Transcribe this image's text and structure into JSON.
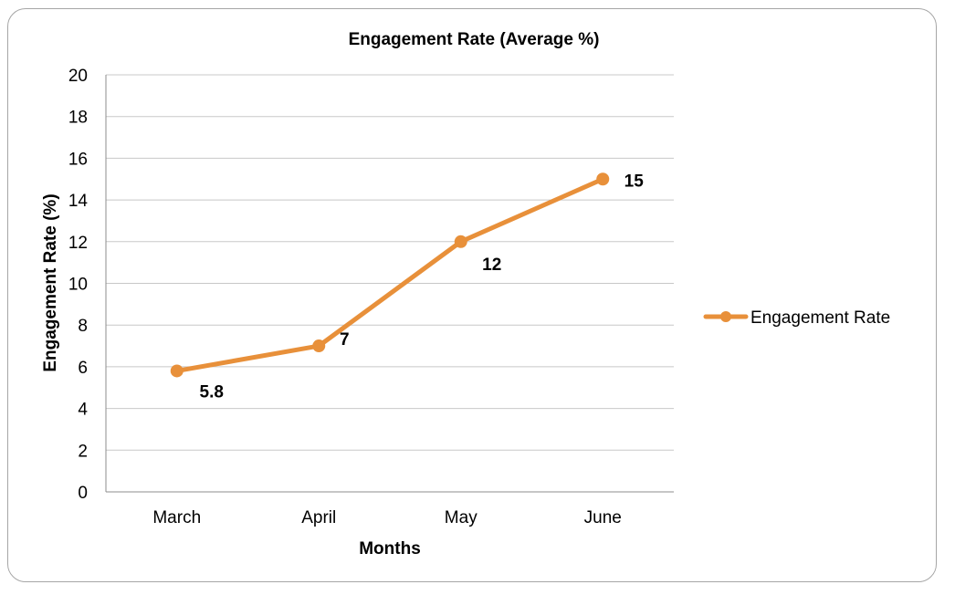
{
  "chart_data": {
    "type": "line",
    "title": "Engagement Rate (Average %)",
    "xlabel": "Months",
    "ylabel": "Engagement Rate (%)",
    "categories": [
      "March",
      "April",
      "May",
      "June"
    ],
    "series": [
      {
        "name": "Engagement Rate",
        "values": [
          5.8,
          7,
          12,
          15
        ],
        "color": "#e8903a"
      }
    ],
    "ylim": [
      0,
      20
    ],
    "yticks": [
      "0",
      "2",
      "4",
      "6",
      "8",
      "10",
      "12",
      "14",
      "16",
      "18",
      "20"
    ],
    "data_labels": [
      "5.8",
      "7",
      "12",
      "15"
    ],
    "grid": true,
    "legend": "right",
    "gridline_color": "#c8c8c8",
    "axis_color": "#8c8c8c"
  }
}
